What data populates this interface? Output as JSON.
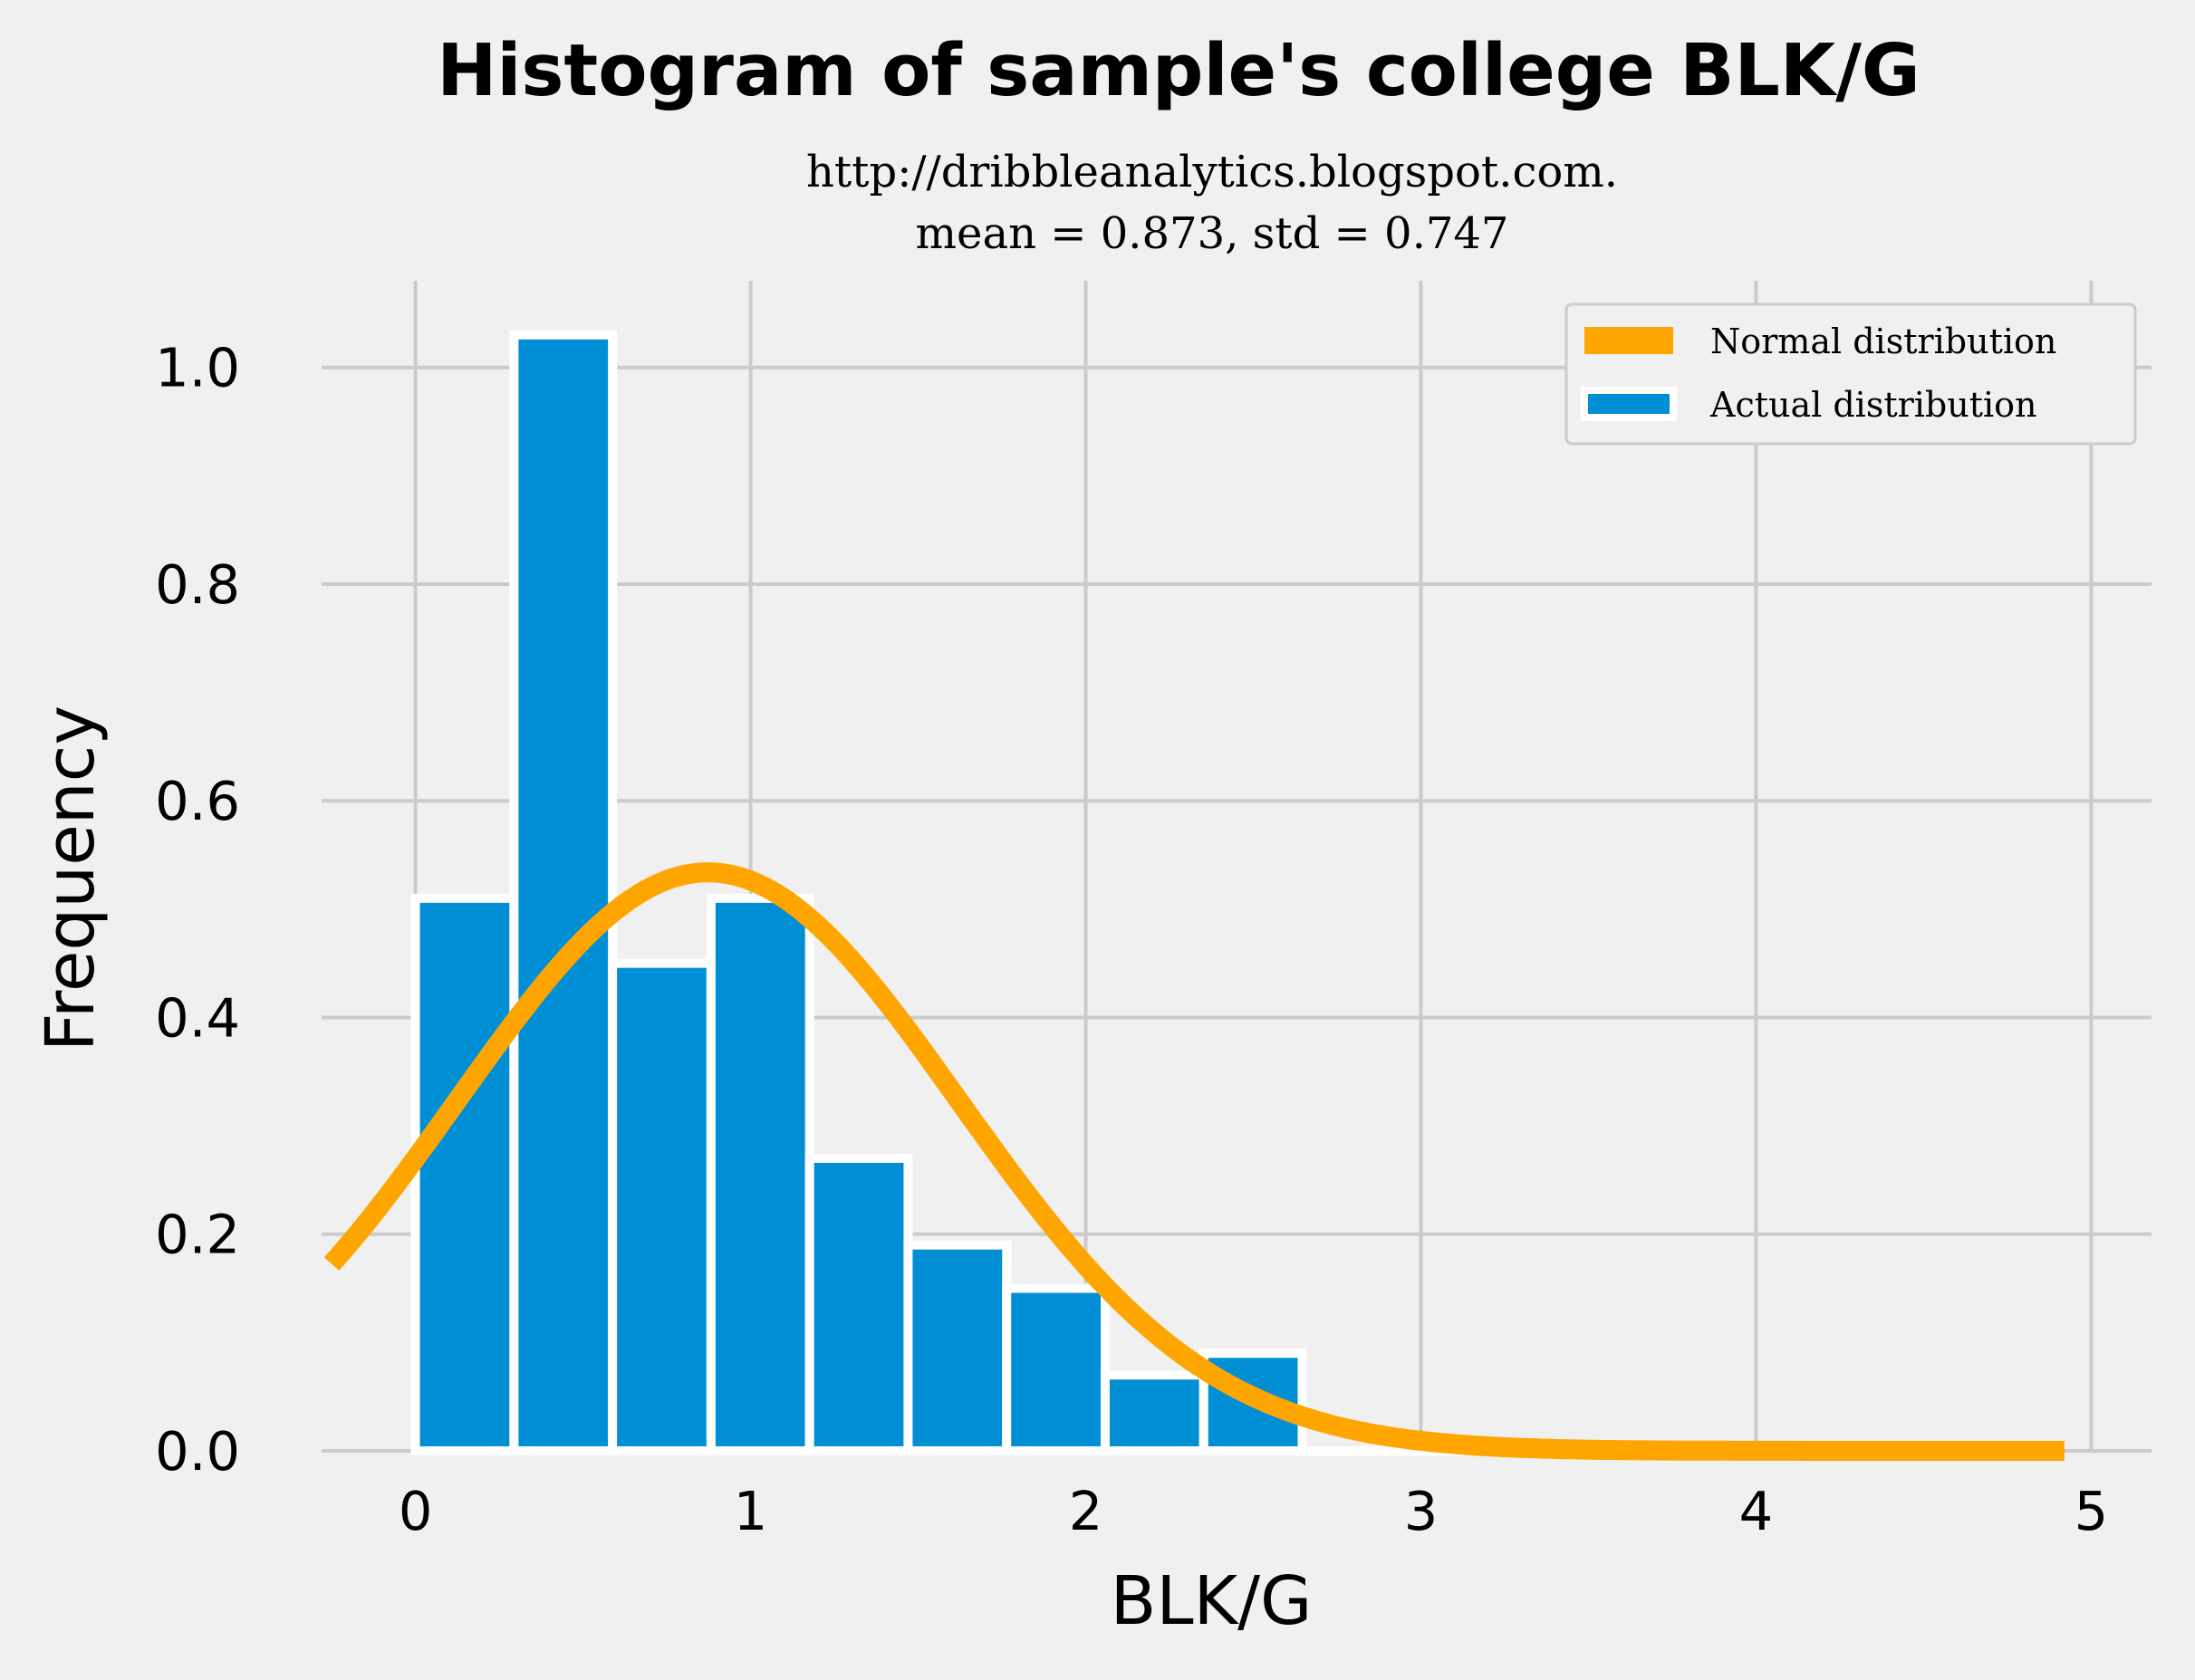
{
  "chart_data": {
    "type": "bar",
    "title": "Histogram of sample's college BLK/G",
    "subtitle_lines": [
      "http://dribbleanalytics.blogspot.com.",
      "mean = 0.873, std = 0.747"
    ],
    "xlabel": "BLK/G",
    "ylabel": "Frequency",
    "xlim": [
      -0.28,
      5.18
    ],
    "ylim": [
      0,
      1.08
    ],
    "x_ticks": [
      0,
      1,
      2,
      3,
      4,
      5
    ],
    "x_tick_labels": [
      "0",
      "1",
      "2",
      "3",
      "4",
      "5"
    ],
    "y_ticks": [
      0.0,
      0.2,
      0.4,
      0.6,
      0.8,
      1.0
    ],
    "y_tick_labels": [
      "0.0",
      "0.2",
      "0.4",
      "0.6",
      "0.8",
      "1.0"
    ],
    "grid": true,
    "legend_position": "top-right",
    "series": [
      {
        "name": "Actual distribution",
        "kind": "histogram",
        "color": "#008fd5",
        "bin_edges": [
          0.0,
          0.294,
          0.588,
          0.882,
          1.176,
          1.47,
          1.764,
          2.058,
          2.352,
          2.646,
          2.94,
          3.234,
          3.528,
          3.822,
          4.116,
          4.41,
          4.704
        ],
        "values": [
          0.51,
          1.03,
          0.45,
          0.51,
          0.27,
          0.19,
          0.15,
          0.07,
          0.09,
          0.0,
          0.0,
          0.0,
          0.0,
          0.0,
          0.0,
          0.0
        ]
      },
      {
        "name": "Normal distribution",
        "kind": "line",
        "color": "#ffa500",
        "mean": 0.873,
        "std": 0.747,
        "x_range": [
          -0.25,
          4.92
        ]
      }
    ]
  }
}
